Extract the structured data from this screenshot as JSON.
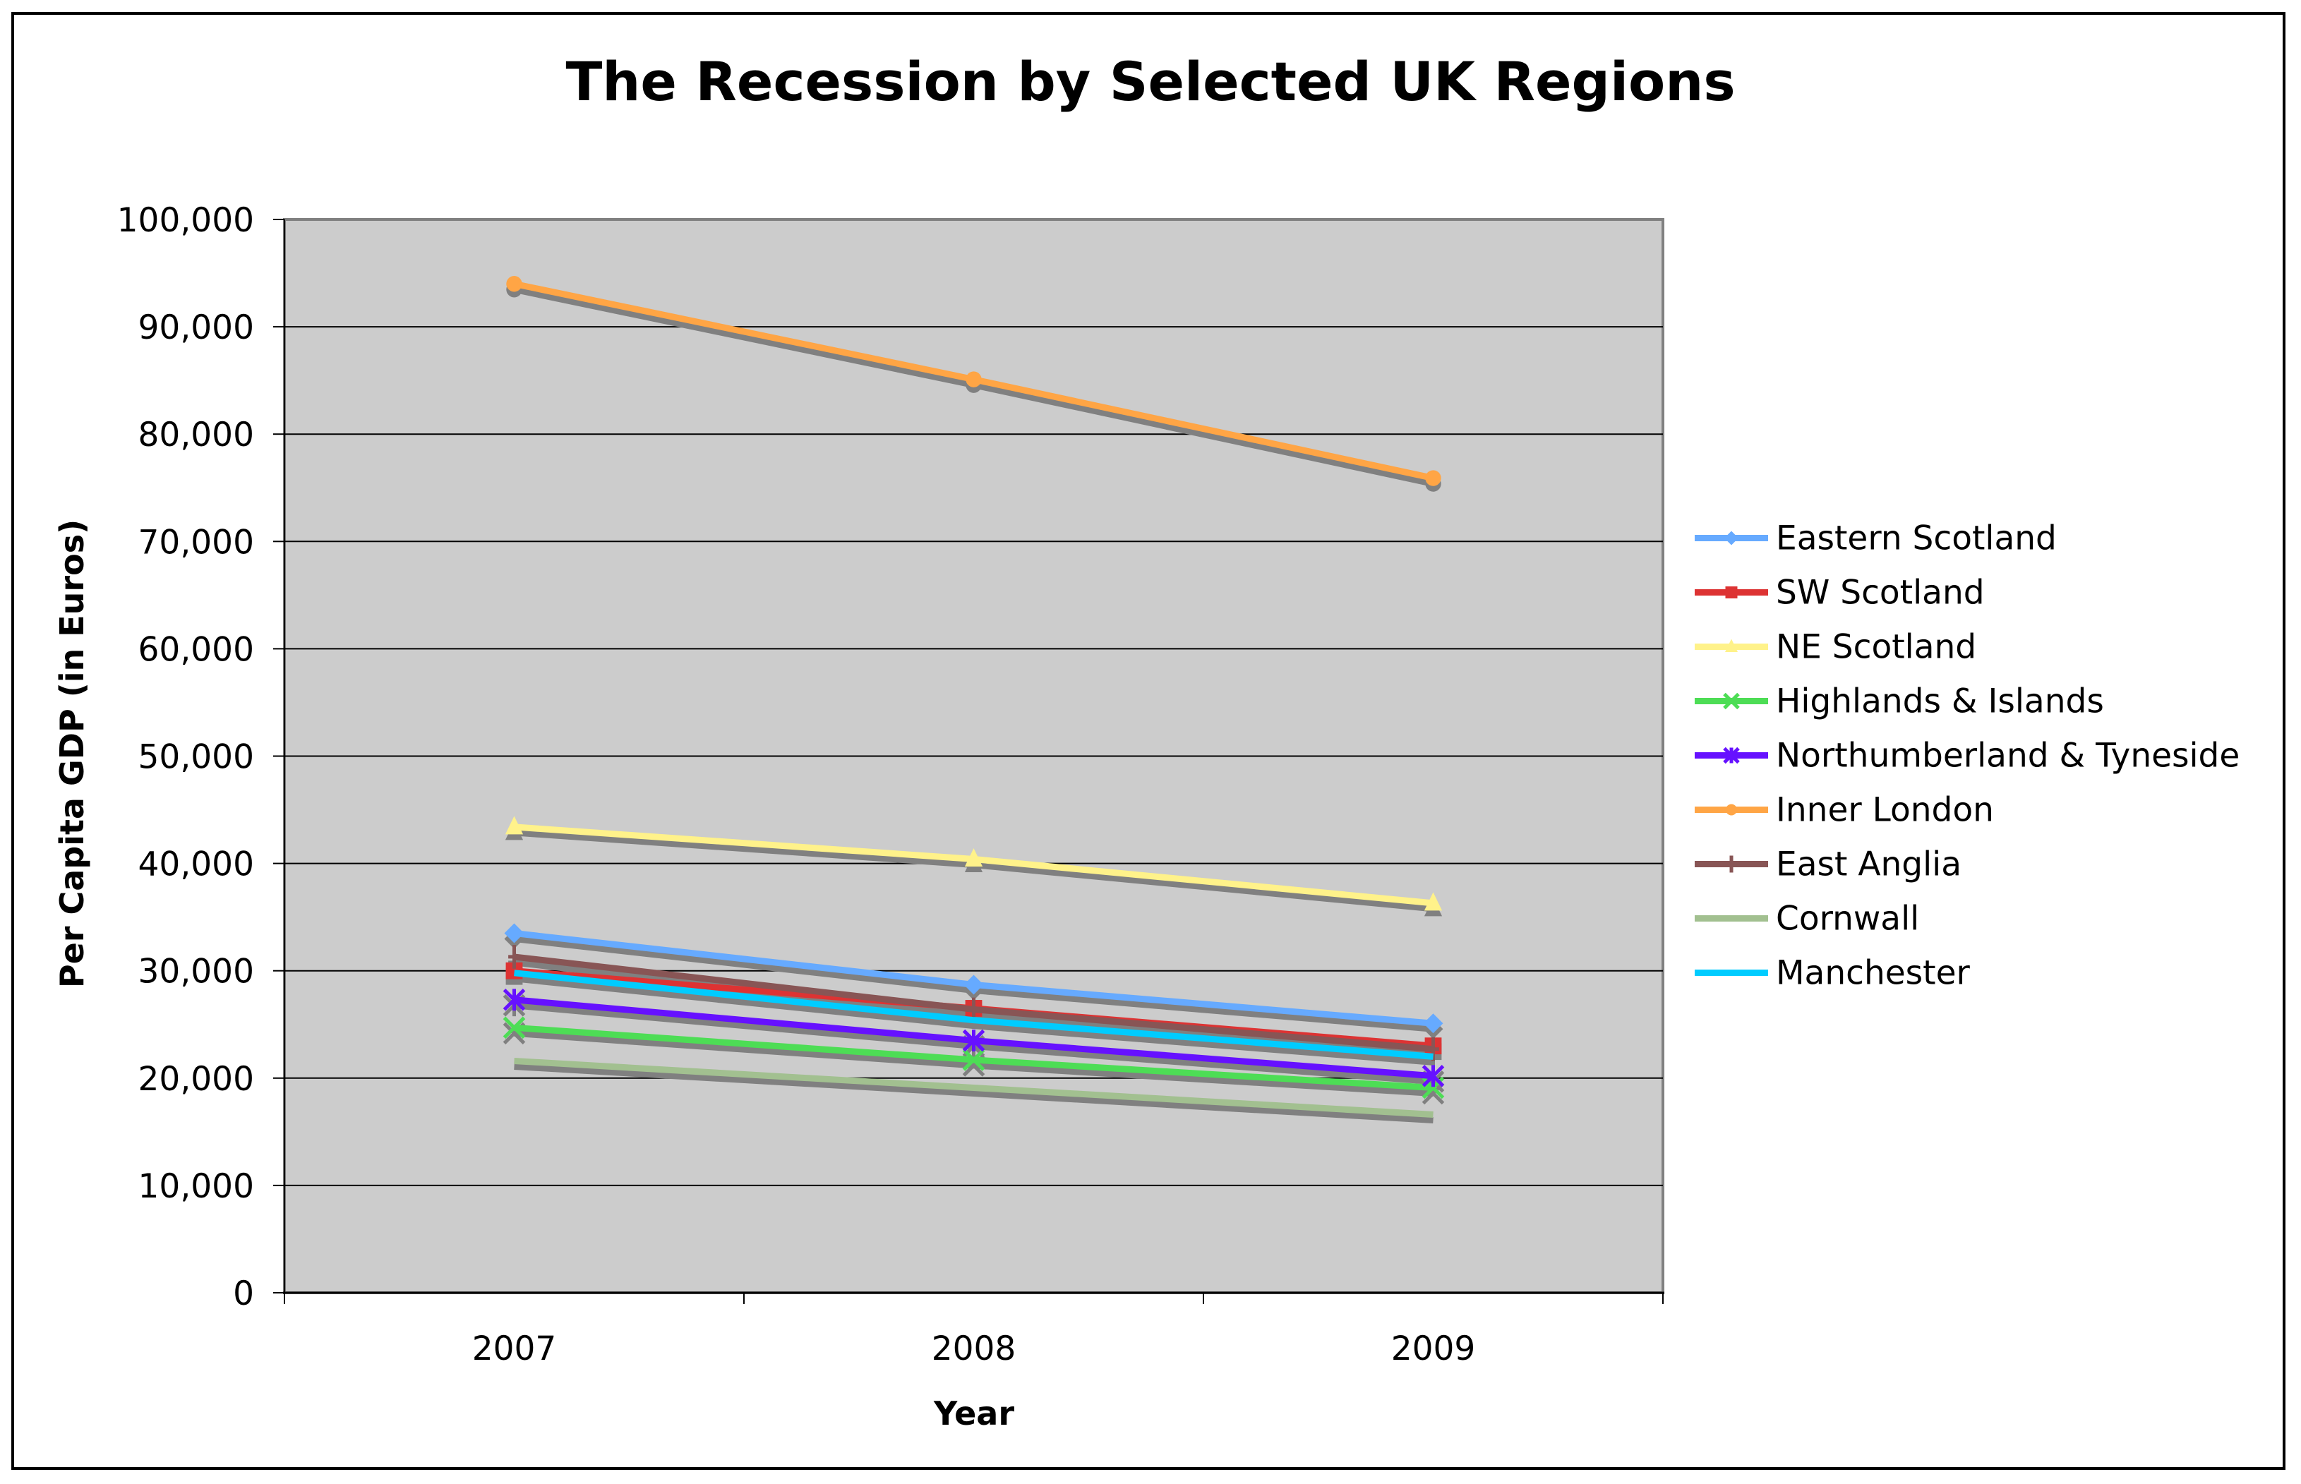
{
  "chart_data": {
    "type": "line",
    "title": "The Recession by Selected UK Regions",
    "xlabel": "Year",
    "ylabel": "Per Capita GDP (in Euros)",
    "categories": [
      "2007",
      "2008",
      "2009"
    ],
    "ylim": [
      0,
      100000
    ],
    "yticks": [
      0,
      10000,
      20000,
      30000,
      40000,
      50000,
      60000,
      70000,
      80000,
      90000,
      100000
    ],
    "ytick_labels": [
      "0",
      "10,000",
      "20,000",
      "30,000",
      "40,000",
      "50,000",
      "60,000",
      "70,000",
      "80,000",
      "90,000",
      "100,000"
    ],
    "grid": true,
    "legend_position": "right",
    "plot_background": "#cccccc",
    "series": [
      {
        "name": "Eastern Scotland",
        "color": "#66aaff",
        "marker": "diamond",
        "values": [
          33500,
          28700,
          25100
        ]
      },
      {
        "name": "SW Scotland",
        "color": "#dd3333",
        "marker": "square",
        "values": [
          30000,
          26500,
          23000
        ]
      },
      {
        "name": "NE Scotland",
        "color": "#fff28a",
        "marker": "triangle",
        "values": [
          43400,
          40400,
          36300
        ]
      },
      {
        "name": "Highlands & Islands",
        "color": "#4ddd55",
        "marker": "x",
        "values": [
          24700,
          21700,
          19100
        ]
      },
      {
        "name": "Northumberland & Tyneside",
        "color": "#6611ff",
        "marker": "asterisk",
        "values": [
          27300,
          23500,
          20200
        ]
      },
      {
        "name": "Inner London",
        "color": "#ffa545",
        "marker": "circle",
        "values": [
          94000,
          85100,
          75900
        ]
      },
      {
        "name": "East Anglia",
        "color": "#885555",
        "marker": "plus",
        "values": [
          31300,
          26400,
          22700
        ]
      },
      {
        "name": "Cornwall",
        "color": "#a2c090",
        "marker": "none",
        "values": [
          21600,
          19100,
          16600
        ]
      },
      {
        "name": "Manchester",
        "color": "#00ccff",
        "marker": "none",
        "values": [
          29800,
          25400,
          22000
        ]
      }
    ]
  }
}
